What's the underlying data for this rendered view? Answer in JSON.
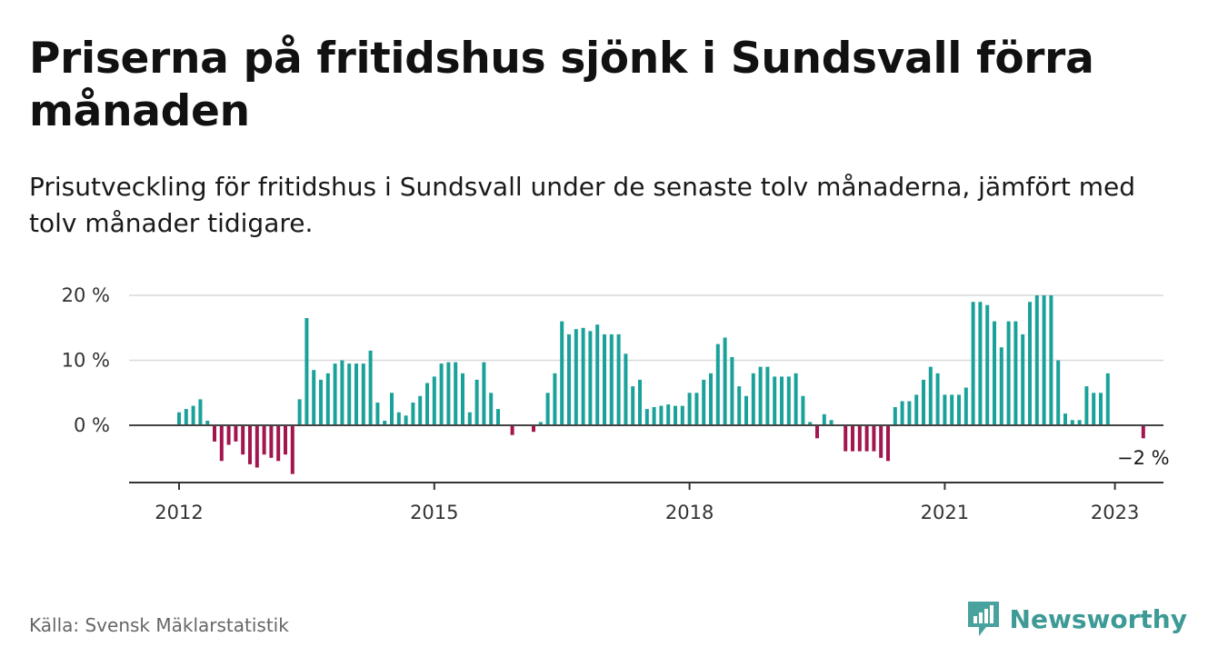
{
  "title": "Priserna på fritidshus sjönk i Sundsvall förra månaden",
  "subtitle": "Prisutveckling för fritidshus i Sundsvall under de senaste tolv månaderna, jämfört med tolv månader tidigare.",
  "source": "Källa: Svensk Mäklarstatistik",
  "brand": {
    "name": "Newsworthy",
    "icon": "newsworthy-bar-chart-logo-icon"
  },
  "colors": {
    "positive": "#1aa29a",
    "negative": "#a3154e",
    "text": "#111111",
    "grid": "#d9d9d9"
  },
  "chart_data": {
    "type": "bar",
    "title": "",
    "xlabel": "",
    "ylabel": "",
    "unit": "%",
    "ylim": [
      -8,
      20
    ],
    "y_ticks": [
      {
        "value": 0,
        "label": "0 %"
      },
      {
        "value": 10,
        "label": "10 %"
      },
      {
        "value": 20,
        "label": "20 %"
      }
    ],
    "x_ticks": [
      {
        "year": 2012,
        "label": "2012"
      },
      {
        "year": 2015,
        "label": "2015"
      },
      {
        "year": 2018,
        "label": "2018"
      },
      {
        "year": 2021,
        "label": "2021"
      },
      {
        "year": 2023,
        "label": "2023"
      }
    ],
    "start": "2012-01",
    "frequency": "monthly",
    "grid": true,
    "last_value_label": "−2 %",
    "values": [
      2,
      2.5,
      3,
      4,
      0.7,
      -2.5,
      -5.5,
      -3,
      -2.5,
      -4.5,
      -6,
      -6.5,
      -4.5,
      -5,
      -5.5,
      -4.5,
      -7.5,
      4,
      16.5,
      8.5,
      7,
      8,
      9.5,
      10,
      9.5,
      9.5,
      9.5,
      11.5,
      3.5,
      0.7,
      5,
      2,
      1.5,
      3.5,
      4.5,
      6.5,
      7.5,
      9.5,
      9.7,
      9.7,
      8,
      2,
      7,
      9.7,
      5,
      2.5,
      0,
      -1.5,
      0,
      0,
      -1,
      0.5,
      5,
      8,
      16,
      14,
      14.8,
      15,
      14.5,
      15.5,
      14,
      14,
      14,
      11,
      6,
      7,
      2.5,
      2.8,
      3,
      3.2,
      3,
      3,
      5,
      5,
      7,
      8,
      12.5,
      13.5,
      10.5,
      6,
      4.5,
      8,
      9,
      9,
      7.5,
      7.5,
      7.5,
      8,
      4.5,
      0.5,
      -2,
      1.7,
      0.8,
      0,
      -4,
      -4,
      -4,
      -4,
      -4,
      -5,
      -5.5,
      2.8,
      3.7,
      3.7,
      4.7,
      7,
      9,
      8,
      4.7,
      4.7,
      4.7,
      5.8,
      19,
      19,
      18.5,
      16,
      12,
      16,
      16,
      14,
      19,
      20,
      20,
      20,
      10,
      1.8,
      0.8,
      0.8,
      6,
      5,
      5,
      8,
      0,
      0,
      0,
      0,
      -2
    ]
  }
}
